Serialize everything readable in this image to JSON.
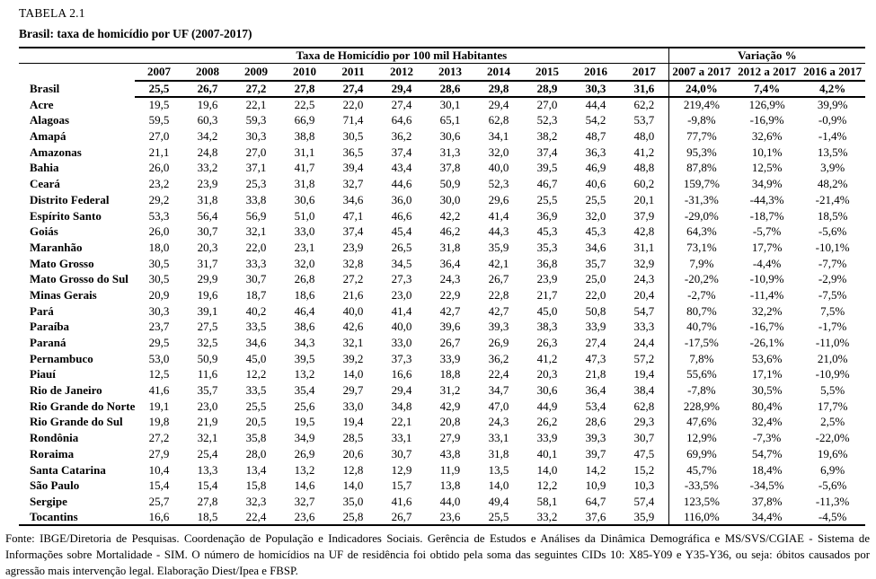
{
  "title": "TABELA 2.1",
  "subtitle": "Brasil: taxa de homicídio por UF (2007-2017)",
  "table": {
    "group_headers": {
      "rates": "Taxa de Homicídio por 100 mil Habitantes",
      "variation": "Variação %"
    },
    "year_columns": [
      "2007",
      "2008",
      "2009",
      "2010",
      "2011",
      "2012",
      "2013",
      "2014",
      "2015",
      "2016",
      "2017"
    ],
    "variation_columns": [
      "2007 a 2017",
      "2012 a 2017",
      "2016 a 2017"
    ],
    "summary_row": {
      "label": "Brasil",
      "values": [
        "25,5",
        "26,7",
        "27,2",
        "27,8",
        "27,4",
        "29,4",
        "28,6",
        "29,8",
        "28,9",
        "30,3",
        "31,6"
      ],
      "variations": [
        "24,0%",
        "7,4%",
        "4,2%"
      ]
    },
    "rows": [
      {
        "label": "Acre",
        "values": [
          "19,5",
          "19,6",
          "22,1",
          "22,5",
          "22,0",
          "27,4",
          "30,1",
          "29,4",
          "27,0",
          "44,4",
          "62,2"
        ],
        "variations": [
          "219,4%",
          "126,9%",
          "39,9%"
        ]
      },
      {
        "label": "Alagoas",
        "values": [
          "59,5",
          "60,3",
          "59,3",
          "66,9",
          "71,4",
          "64,6",
          "65,1",
          "62,8",
          "52,3",
          "54,2",
          "53,7"
        ],
        "variations": [
          "-9,8%",
          "-16,9%",
          "-0,9%"
        ]
      },
      {
        "label": "Amapá",
        "values": [
          "27,0",
          "34,2",
          "30,3",
          "38,8",
          "30,5",
          "36,2",
          "30,6",
          "34,1",
          "38,2",
          "48,7",
          "48,0"
        ],
        "variations": [
          "77,7%",
          "32,6%",
          "-1,4%"
        ]
      },
      {
        "label": "Amazonas",
        "values": [
          "21,1",
          "24,8",
          "27,0",
          "31,1",
          "36,5",
          "37,4",
          "31,3",
          "32,0",
          "37,4",
          "36,3",
          "41,2"
        ],
        "variations": [
          "95,3%",
          "10,1%",
          "13,5%"
        ]
      },
      {
        "label": "Bahia",
        "values": [
          "26,0",
          "33,2",
          "37,1",
          "41,7",
          "39,4",
          "43,4",
          "37,8",
          "40,0",
          "39,5",
          "46,9",
          "48,8"
        ],
        "variations": [
          "87,8%",
          "12,5%",
          "3,9%"
        ]
      },
      {
        "label": "Ceará",
        "values": [
          "23,2",
          "23,9",
          "25,3",
          "31,8",
          "32,7",
          "44,6",
          "50,9",
          "52,3",
          "46,7",
          "40,6",
          "60,2"
        ],
        "variations": [
          "159,7%",
          "34,9%",
          "48,2%"
        ]
      },
      {
        "label": "Distrito Federal",
        "values": [
          "29,2",
          "31,8",
          "33,8",
          "30,6",
          "34,6",
          "36,0",
          "30,0",
          "29,6",
          "25,5",
          "25,5",
          "20,1"
        ],
        "variations": [
          "-31,3%",
          "-44,3%",
          "-21,4%"
        ]
      },
      {
        "label": "Espírito Santo",
        "values": [
          "53,3",
          "56,4",
          "56,9",
          "51,0",
          "47,1",
          "46,6",
          "42,2",
          "41,4",
          "36,9",
          "32,0",
          "37,9"
        ],
        "variations": [
          "-29,0%",
          "-18,7%",
          "18,5%"
        ]
      },
      {
        "label": "Goiás",
        "values": [
          "26,0",
          "30,7",
          "32,1",
          "33,0",
          "37,4",
          "45,4",
          "46,2",
          "44,3",
          "45,3",
          "45,3",
          "42,8"
        ],
        "variations": [
          "64,3%",
          "-5,7%",
          "-5,6%"
        ]
      },
      {
        "label": "Maranhão",
        "values": [
          "18,0",
          "20,3",
          "22,0",
          "23,1",
          "23,9",
          "26,5",
          "31,8",
          "35,9",
          "35,3",
          "34,6",
          "31,1"
        ],
        "variations": [
          "73,1%",
          "17,7%",
          "-10,1%"
        ]
      },
      {
        "label": "Mato Grosso",
        "values": [
          "30,5",
          "31,7",
          "33,3",
          "32,0",
          "32,8",
          "34,5",
          "36,4",
          "42,1",
          "36,8",
          "35,7",
          "32,9"
        ],
        "variations": [
          "7,9%",
          "-4,4%",
          "-7,7%"
        ]
      },
      {
        "label": "Mato Grosso do Sul",
        "values": [
          "30,5",
          "29,9",
          "30,7",
          "26,8",
          "27,2",
          "27,3",
          "24,3",
          "26,7",
          "23,9",
          "25,0",
          "24,3"
        ],
        "variations": [
          "-20,2%",
          "-10,9%",
          "-2,9%"
        ]
      },
      {
        "label": "Minas Gerais",
        "values": [
          "20,9",
          "19,6",
          "18,7",
          "18,6",
          "21,6",
          "23,0",
          "22,9",
          "22,8",
          "21,7",
          "22,0",
          "20,4"
        ],
        "variations": [
          "-2,7%",
          "-11,4%",
          "-7,5%"
        ]
      },
      {
        "label": "Pará",
        "values": [
          "30,3",
          "39,1",
          "40,2",
          "46,4",
          "40,0",
          "41,4",
          "42,7",
          "42,7",
          "45,0",
          "50,8",
          "54,7"
        ],
        "variations": [
          "80,7%",
          "32,2%",
          "7,5%"
        ]
      },
      {
        "label": "Paraíba",
        "values": [
          "23,7",
          "27,5",
          "33,5",
          "38,6",
          "42,6",
          "40,0",
          "39,6",
          "39,3",
          "38,3",
          "33,9",
          "33,3"
        ],
        "variations": [
          "40,7%",
          "-16,7%",
          "-1,7%"
        ]
      },
      {
        "label": "Paraná",
        "values": [
          "29,5",
          "32,5",
          "34,6",
          "34,3",
          "32,1",
          "33,0",
          "26,7",
          "26,9",
          "26,3",
          "27,4",
          "24,4"
        ],
        "variations": [
          "-17,5%",
          "-26,1%",
          "-11,0%"
        ]
      },
      {
        "label": "Pernambuco",
        "values": [
          "53,0",
          "50,9",
          "45,0",
          "39,5",
          "39,2",
          "37,3",
          "33,9",
          "36,2",
          "41,2",
          "47,3",
          "57,2"
        ],
        "variations": [
          "7,8%",
          "53,6%",
          "21,0%"
        ]
      },
      {
        "label": "Piauí",
        "values": [
          "12,5",
          "11,6",
          "12,2",
          "13,2",
          "14,0",
          "16,6",
          "18,8",
          "22,4",
          "20,3",
          "21,8",
          "19,4"
        ],
        "variations": [
          "55,6%",
          "17,1%",
          "-10,9%"
        ]
      },
      {
        "label": "Rio de Janeiro",
        "values": [
          "41,6",
          "35,7",
          "33,5",
          "35,4",
          "29,7",
          "29,4",
          "31,2",
          "34,7",
          "30,6",
          "36,4",
          "38,4"
        ],
        "variations": [
          "-7,8%",
          "30,5%",
          "5,5%"
        ]
      },
      {
        "label": "Rio Grande do Norte",
        "values": [
          "19,1",
          "23,0",
          "25,5",
          "25,6",
          "33,0",
          "34,8",
          "42,9",
          "47,0",
          "44,9",
          "53,4",
          "62,8"
        ],
        "variations": [
          "228,9%",
          "80,4%",
          "17,7%"
        ]
      },
      {
        "label": "Rio Grande do Sul",
        "values": [
          "19,8",
          "21,9",
          "20,5",
          "19,5",
          "19,4",
          "22,1",
          "20,8",
          "24,3",
          "26,2",
          "28,6",
          "29,3"
        ],
        "variations": [
          "47,6%",
          "32,4%",
          "2,5%"
        ]
      },
      {
        "label": "Rondônia",
        "values": [
          "27,2",
          "32,1",
          "35,8",
          "34,9",
          "28,5",
          "33,1",
          "27,9",
          "33,1",
          "33,9",
          "39,3",
          "30,7"
        ],
        "variations": [
          "12,9%",
          "-7,3%",
          "-22,0%"
        ]
      },
      {
        "label": "Roraima",
        "values": [
          "27,9",
          "25,4",
          "28,0",
          "26,9",
          "20,6",
          "30,7",
          "43,8",
          "31,8",
          "40,1",
          "39,7",
          "47,5"
        ],
        "variations": [
          "69,9%",
          "54,7%",
          "19,6%"
        ]
      },
      {
        "label": "Santa Catarina",
        "values": [
          "10,4",
          "13,3",
          "13,4",
          "13,2",
          "12,8",
          "12,9",
          "11,9",
          "13,5",
          "14,0",
          "14,2",
          "15,2"
        ],
        "variations": [
          "45,7%",
          "18,4%",
          "6,9%"
        ]
      },
      {
        "label": "São Paulo",
        "values": [
          "15,4",
          "15,4",
          "15,8",
          "14,6",
          "14,0",
          "15,7",
          "13,8",
          "14,0",
          "12,2",
          "10,9",
          "10,3"
        ],
        "variations": [
          "-33,5%",
          "-34,5%",
          "-5,6%"
        ]
      },
      {
        "label": "Sergipe",
        "values": [
          "25,7",
          "27,8",
          "32,3",
          "32,7",
          "35,0",
          "41,6",
          "44,0",
          "49,4",
          "58,1",
          "64,7",
          "57,4"
        ],
        "variations": [
          "123,5%",
          "37,8%",
          "-11,3%"
        ]
      },
      {
        "label": "Tocantins",
        "values": [
          "16,6",
          "18,5",
          "22,4",
          "23,6",
          "25,8",
          "26,7",
          "23,6",
          "25,5",
          "33,2",
          "37,6",
          "35,9"
        ],
        "variations": [
          "116,0%",
          "34,4%",
          "-4,5%"
        ]
      }
    ]
  },
  "footer": {
    "source": "Fonte: IBGE/Diretoria de Pesquisas. Coordenação de População e Indicadores Sociais. Gerência de Estudos e Análises da Dinâmica Demográfica e MS/SVS/CGIAE - Sistema de Informações sobre Mortalidade - SIM. O número de homicídios na UF de residência foi obtido pela soma das seguintes CIDs 10: X85-Y09 e Y35-Y36, ou seja: óbitos causados por agressão mais intervenção legal. Elaboração Diest/Ipea e FBSP."
  }
}
